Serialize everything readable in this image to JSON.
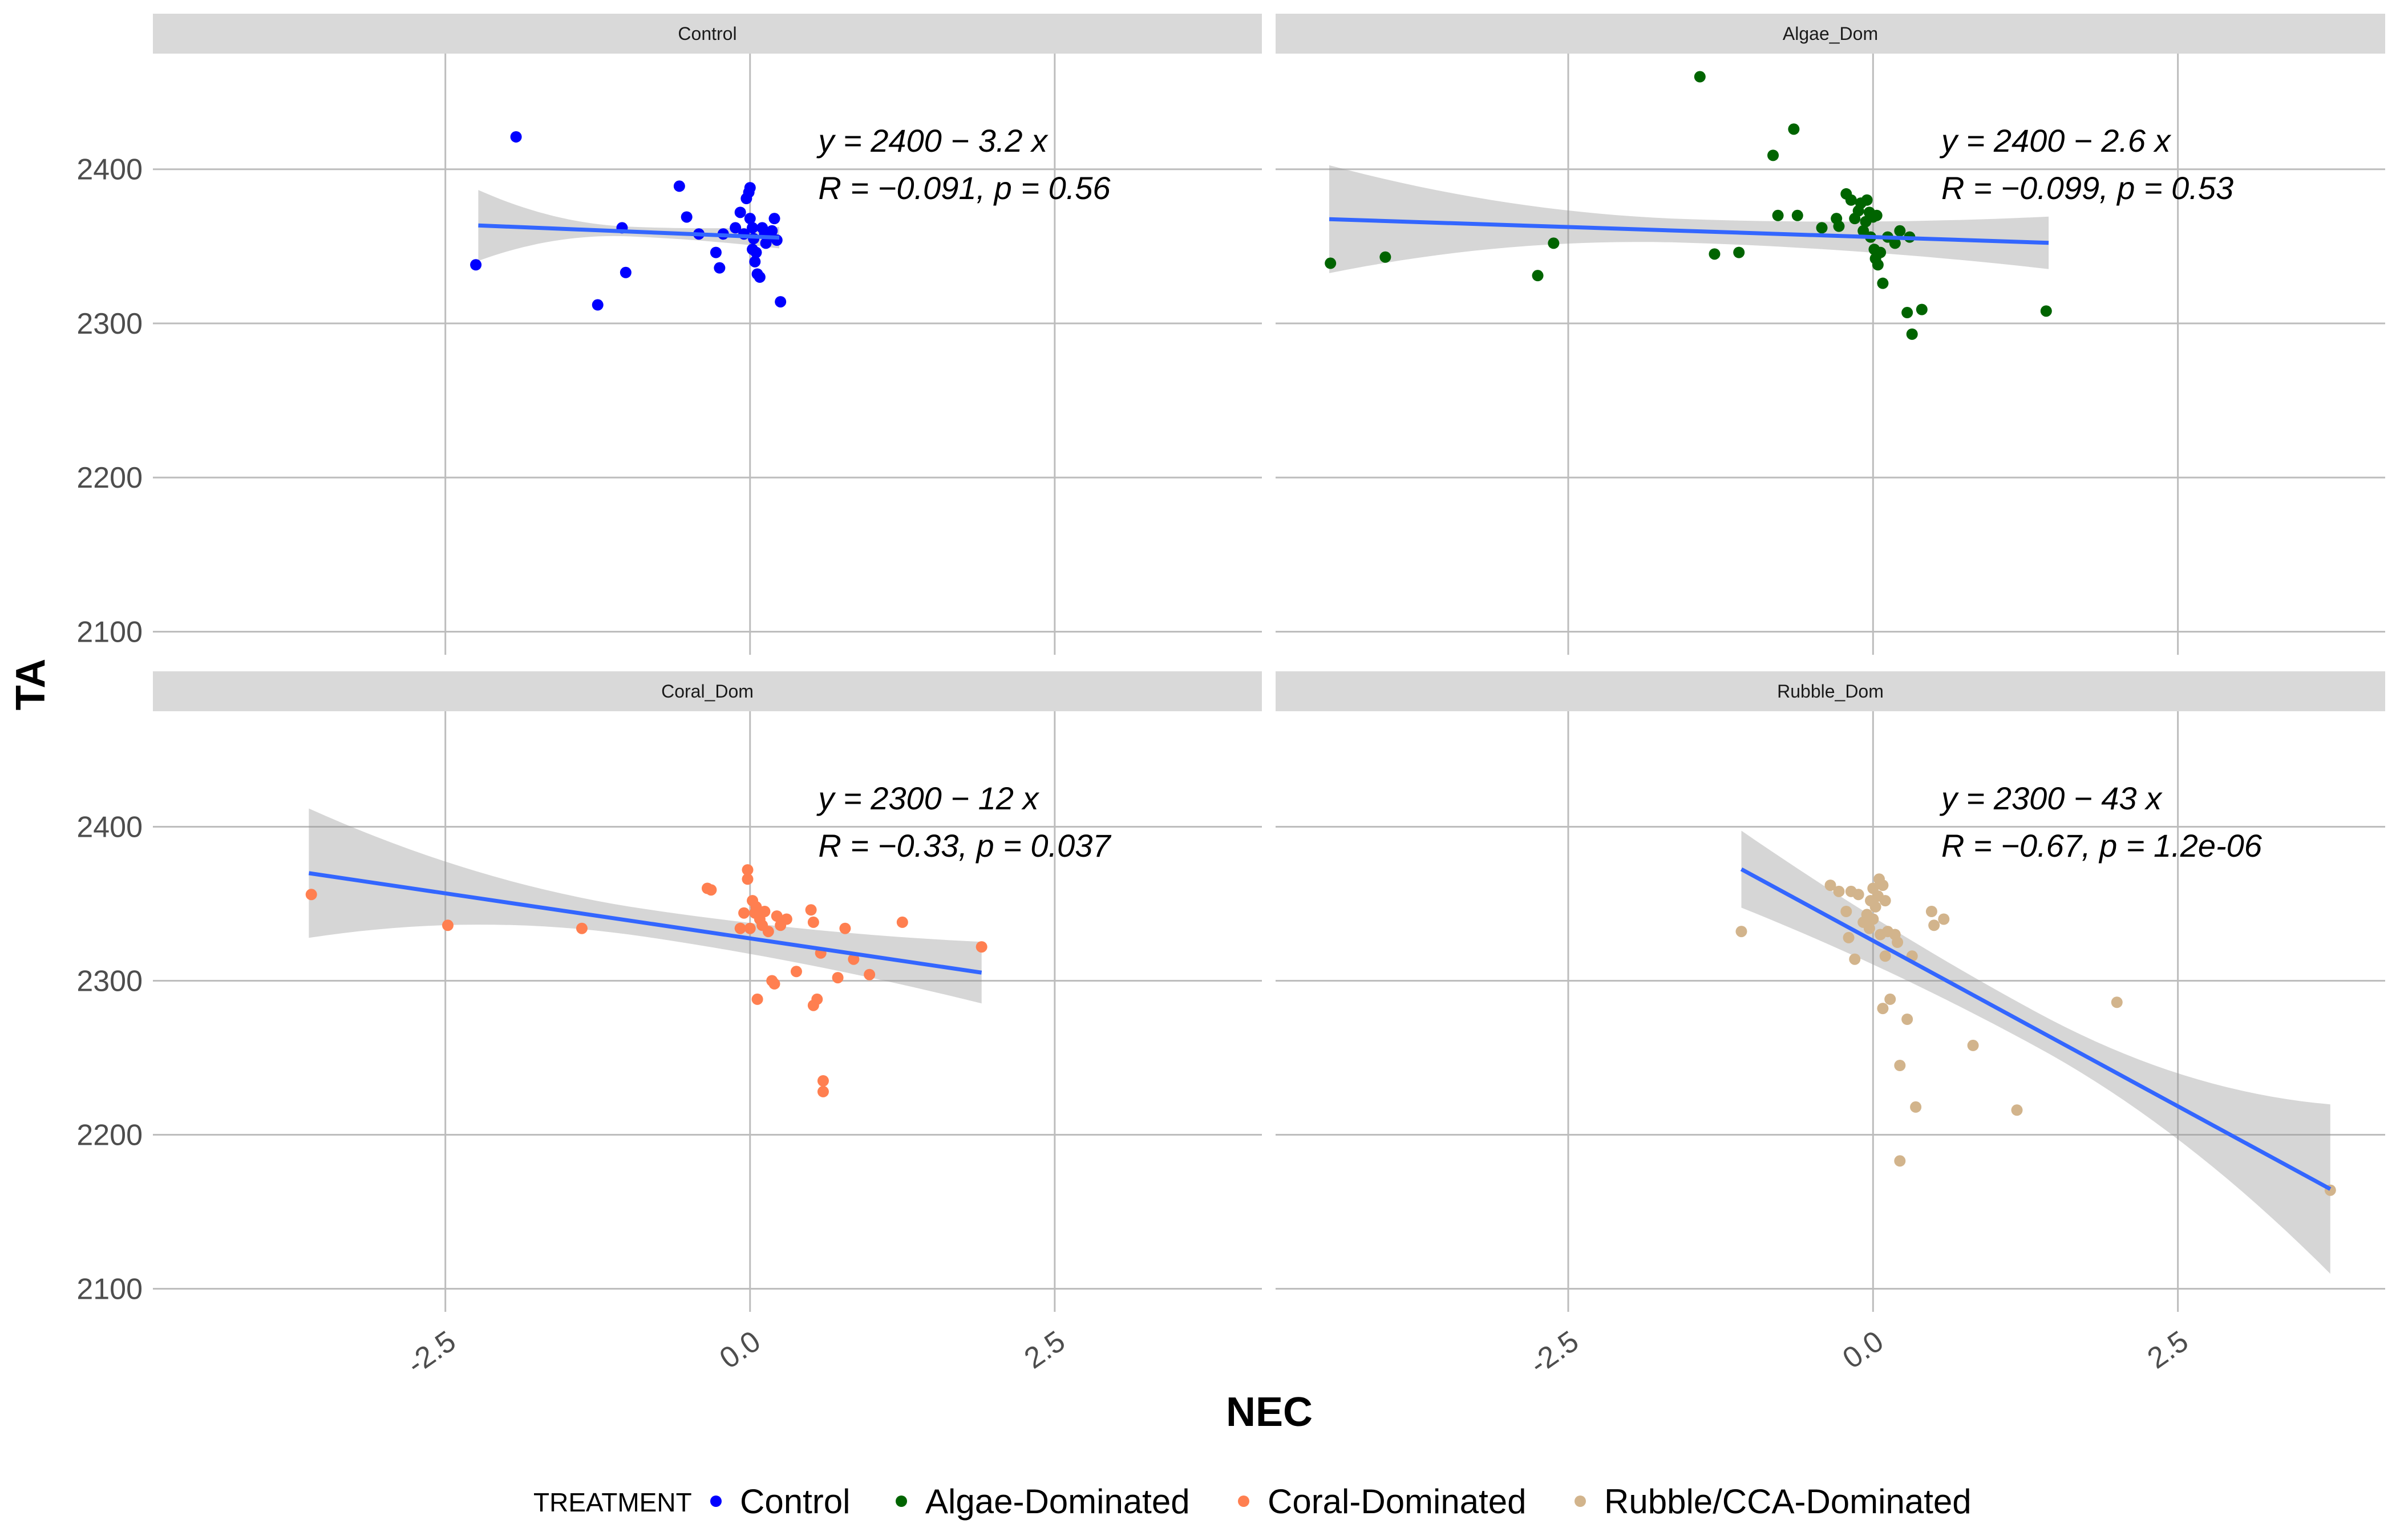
{
  "chart_data": {
    "type": "scatter",
    "xlabel": "NEC",
    "ylabel": "TA",
    "xlim": [
      -4.9,
      4.2
    ],
    "ylim": [
      2085,
      2475
    ],
    "x_ticks": [
      -2.5,
      0.0,
      2.5
    ],
    "x_tick_labels": [
      "-2.5",
      "0.0",
      "2.5"
    ],
    "y_ticks": [
      2100,
      2200,
      2300,
      2400
    ],
    "y_tick_labels": [
      "2100",
      "2200",
      "2300",
      "2400"
    ],
    "grid": true,
    "legend": {
      "title": "TREATMENT",
      "position": "bottom",
      "entries": [
        {
          "label": "Control",
          "color": "#0000FF"
        },
        {
          "label": "Algae-Dominated",
          "color": "#006400"
        },
        {
          "label": "Coral-Dominated",
          "color": "#FF7F50"
        },
        {
          "label": "Rubble/CCA-Dominated",
          "color": "#D2B48C"
        }
      ]
    },
    "panels": [
      {
        "strip": "Control",
        "color": "#0000FF",
        "equation": "y = 2400 − 3.2 x",
        "stats": "R = −0.091, p = 0.56",
        "fit": {
          "x0": -2.23,
          "x1": 0.24,
          "intercept": 2356.4,
          "slope": -3.2,
          "se0": 23,
          "se1": 7
        },
        "points": [
          [
            -1.92,
            2421
          ],
          [
            -2.25,
            2338
          ],
          [
            -1.25,
            2312
          ],
          [
            -1.02,
            2333
          ],
          [
            -1.05,
            2362
          ],
          [
            -0.58,
            2389
          ],
          [
            -0.52,
            2369
          ],
          [
            -0.42,
            2358
          ],
          [
            -0.28,
            2346
          ],
          [
            -0.25,
            2336
          ],
          [
            -0.22,
            2358
          ],
          [
            -0.12,
            2362
          ],
          [
            -0.05,
            2358
          ],
          [
            -0.03,
            2381
          ],
          [
            -0.01,
            2385
          ],
          [
            0.0,
            2388
          ],
          [
            0.0,
            2368
          ],
          [
            0.02,
            2362
          ],
          [
            0.03,
            2355
          ],
          [
            0.04,
            2340
          ],
          [
            0.05,
            2346
          ],
          [
            0.06,
            2332
          ],
          [
            0.08,
            2330
          ],
          [
            0.1,
            2362
          ],
          [
            0.12,
            2358
          ],
          [
            0.15,
            2356
          ],
          [
            0.18,
            2360
          ],
          [
            0.2,
            2368
          ],
          [
            0.22,
            2354
          ],
          [
            0.25,
            2314
          ],
          [
            0.02,
            2348
          ],
          [
            -0.08,
            2372
          ],
          [
            0.13,
            2352
          ]
        ]
      },
      {
        "strip": "Algae_Dom",
        "color": "#006400",
        "equation": "y = 2400 − 2.6 x",
        "stats": "R = −0.099, p = 0.53",
        "fit": {
          "x0": -4.46,
          "x1": 1.44,
          "intercept": 2356.0,
          "slope": -2.6,
          "se0": 35,
          "se1": 17
        },
        "points": [
          [
            -4.45,
            2339
          ],
          [
            -4.0,
            2343
          ],
          [
            -2.75,
            2331
          ],
          [
            -2.62,
            2352
          ],
          [
            -1.42,
            2460
          ],
          [
            -1.3,
            2345
          ],
          [
            -1.1,
            2346
          ],
          [
            -0.82,
            2409
          ],
          [
            -0.78,
            2370
          ],
          [
            -0.65,
            2426
          ],
          [
            -0.62,
            2370
          ],
          [
            -0.42,
            2362
          ],
          [
            -0.3,
            2368
          ],
          [
            -0.28,
            2363
          ],
          [
            -0.22,
            2384
          ],
          [
            -0.18,
            2380
          ],
          [
            -0.15,
            2368
          ],
          [
            -0.12,
            2373
          ],
          [
            -0.1,
            2378
          ],
          [
            -0.08,
            2360
          ],
          [
            -0.05,
            2380
          ],
          [
            -0.03,
            2372
          ],
          [
            -0.02,
            2356
          ],
          [
            0.0,
            2369
          ],
          [
            0.01,
            2348
          ],
          [
            0.02,
            2342
          ],
          [
            0.04,
            2338
          ],
          [
            0.06,
            2346
          ],
          [
            0.08,
            2326
          ],
          [
            0.12,
            2356
          ],
          [
            0.18,
            2352
          ],
          [
            0.22,
            2360
          ],
          [
            0.28,
            2307
          ],
          [
            0.3,
            2356
          ],
          [
            0.32,
            2293
          ],
          [
            0.4,
            2309
          ],
          [
            1.42,
            2308
          ],
          [
            -0.06,
            2366
          ],
          [
            0.03,
            2370
          ]
        ]
      },
      {
        "strip": "Coral_Dom",
        "color": "#FF7F50",
        "equation": "y = 2300 − 12 x",
        "stats": "R = −0.33, p = 0.037",
        "fit": {
          "x0": -3.62,
          "x1": 1.9,
          "intercept": 2327.5,
          "slope": -11.7,
          "se0": 42,
          "se1": 20
        },
        "points": [
          [
            -3.6,
            2356
          ],
          [
            -2.48,
            2336
          ],
          [
            -1.38,
            2334
          ],
          [
            -0.35,
            2360
          ],
          [
            -0.32,
            2359
          ],
          [
            -0.08,
            2334
          ],
          [
            -0.05,
            2344
          ],
          [
            -0.02,
            2366
          ],
          [
            -0.02,
            2372
          ],
          [
            0.0,
            2334
          ],
          [
            0.02,
            2352
          ],
          [
            0.04,
            2344
          ],
          [
            0.05,
            2348
          ],
          [
            0.06,
            2288
          ],
          [
            0.08,
            2340
          ],
          [
            0.1,
            2336
          ],
          [
            0.12,
            2345
          ],
          [
            0.15,
            2332
          ],
          [
            0.18,
            2300
          ],
          [
            0.2,
            2298
          ],
          [
            0.22,
            2342
          ],
          [
            0.25,
            2336
          ],
          [
            0.3,
            2340
          ],
          [
            0.38,
            2306
          ],
          [
            0.5,
            2346
          ],
          [
            0.52,
            2338
          ],
          [
            0.52,
            2284
          ],
          [
            0.55,
            2288
          ],
          [
            0.58,
            2318
          ],
          [
            0.6,
            2235
          ],
          [
            0.6,
            2228
          ],
          [
            0.72,
            2302
          ],
          [
            0.78,
            2334
          ],
          [
            0.85,
            2314
          ],
          [
            0.98,
            2304
          ],
          [
            1.25,
            2338
          ],
          [
            1.9,
            2322
          ]
        ]
      },
      {
        "strip": "Rubble_Dom",
        "color": "#D2B48C",
        "equation": "y = 2300 − 43 x",
        "stats": "R = −0.67, p = 1.2e-06",
        "fit": {
          "x0": -1.08,
          "x1": 3.75,
          "intercept": 2326.0,
          "slope": -43.0,
          "se0": 25,
          "se1": 55
        },
        "points": [
          [
            -1.08,
            2332
          ],
          [
            -0.35,
            2362
          ],
          [
            -0.28,
            2358
          ],
          [
            -0.22,
            2345
          ],
          [
            -0.2,
            2328
          ],
          [
            -0.18,
            2358
          ],
          [
            -0.15,
            2314
          ],
          [
            -0.12,
            2356
          ],
          [
            -0.08,
            2338
          ],
          [
            -0.05,
            2343
          ],
          [
            -0.02,
            2352
          ],
          [
            0.0,
            2340
          ],
          [
            0.02,
            2348
          ],
          [
            0.04,
            2355
          ],
          [
            0.05,
            2366
          ],
          [
            0.06,
            2330
          ],
          [
            0.08,
            2282
          ],
          [
            0.08,
            2362
          ],
          [
            0.1,
            2352
          ],
          [
            0.1,
            2316
          ],
          [
            0.12,
            2332
          ],
          [
            0.14,
            2288
          ],
          [
            0.18,
            2330
          ],
          [
            0.2,
            2325
          ],
          [
            0.22,
            2245
          ],
          [
            0.22,
            2183
          ],
          [
            0.28,
            2275
          ],
          [
            0.32,
            2316
          ],
          [
            0.35,
            2218
          ],
          [
            0.48,
            2345
          ],
          [
            0.5,
            2336
          ],
          [
            0.58,
            2340
          ],
          [
            0.82,
            2258
          ],
          [
            1.18,
            2216
          ],
          [
            2.0,
            2286
          ],
          [
            3.75,
            2164
          ],
          [
            -0.03,
            2334
          ],
          [
            0.0,
            2360
          ]
        ]
      }
    ]
  }
}
